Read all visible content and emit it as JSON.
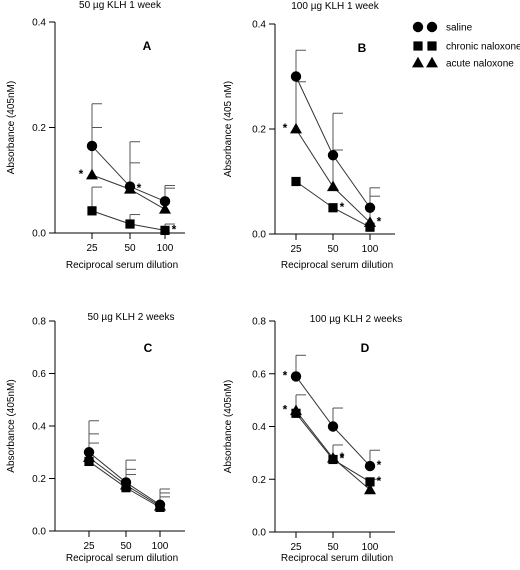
{
  "legend": {
    "placement": "top-right",
    "entries": [
      {
        "label": "saline",
        "marker": "circle"
      },
      {
        "label": "chronic naloxone",
        "marker": "square"
      },
      {
        "label": "acute naloxone",
        "marker": "triangle"
      }
    ]
  },
  "chart_data": [
    {
      "type": "line",
      "panel": "A",
      "title": "50 µg KLH 1 week",
      "xlabel": "Reciprocal serum dilution",
      "ylabel": "Absorbance (405nM)",
      "categories": [
        "25",
        "50",
        "100"
      ],
      "ylim": [
        0,
        0.4
      ],
      "yticks": [
        "0.0",
        "0.2",
        "0.4"
      ],
      "grid": false,
      "series": [
        {
          "name": "saline",
          "marker": "circle",
          "values": [
            0.165,
            0.088,
            0.06
          ],
          "error": [
            0.08,
            0.085,
            0.03
          ]
        },
        {
          "name": "acute naloxone",
          "marker": "triangle",
          "values": [
            0.11,
            0.083,
            0.045
          ],
          "error": [
            0.09,
            0.05,
            0.04
          ]
        },
        {
          "name": "chronic naloxone",
          "marker": "square",
          "values": [
            0.042,
            0.017,
            0.005
          ],
          "error": [
            0.045,
            0.018,
            0.012
          ]
        }
      ],
      "annotations": [
        {
          "text": "*",
          "series": "acute naloxone",
          "index": 0
        },
        {
          "text": "*",
          "series": "acute naloxone",
          "index": 1
        },
        {
          "text": "*",
          "series": "chronic naloxone",
          "index": 2
        }
      ]
    },
    {
      "type": "line",
      "panel": "B",
      "title": "100 µg KLH 1 week",
      "xlabel": "Reciprocal serum dilution",
      "ylabel": "Absorbance (405 nM)",
      "categories": [
        "25",
        "50",
        "100"
      ],
      "ylim": [
        0,
        0.4
      ],
      "yticks": [
        "0.0",
        "0.2",
        "0.4"
      ],
      "grid": false,
      "series": [
        {
          "name": "saline",
          "marker": "circle",
          "values": [
            0.3,
            0.15,
            0.05
          ],
          "error": [
            0.05,
            0.08,
            0.038
          ]
        },
        {
          "name": "acute naloxone",
          "marker": "triangle",
          "values": [
            0.2,
            0.09,
            0.022
          ],
          "error": [
            0.09,
            0.07,
            0.05
          ]
        },
        {
          "name": "chronic naloxone",
          "marker": "square",
          "values": [
            0.1,
            0.05,
            0.013
          ],
          "error": [
            0,
            0,
            0
          ]
        }
      ],
      "annotations": [
        {
          "text": "*",
          "series": "acute naloxone",
          "index": 0
        },
        {
          "text": "*",
          "series": "chronic naloxone",
          "index": 1
        },
        {
          "text": "*",
          "series": "acute naloxone",
          "index": 2
        }
      ]
    },
    {
      "type": "line",
      "panel": "C",
      "title": "50 µg KLH 2 weeks",
      "xlabel": "Reciprocal serum dilution",
      "ylabel": "Absorbance (405nM)",
      "categories": [
        "25",
        "50",
        "100"
      ],
      "ylim": [
        0,
        0.8
      ],
      "yticks": [
        "0.0",
        "0.2",
        "0.4",
        "0.6",
        "0.8"
      ],
      "grid": false,
      "series": [
        {
          "name": "saline",
          "marker": "circle",
          "values": [
            0.3,
            0.185,
            0.1
          ],
          "error": [
            0.12,
            0.085,
            0.06
          ]
        },
        {
          "name": "acute naloxone",
          "marker": "triangle",
          "values": [
            0.28,
            0.175,
            0.095
          ],
          "error": [
            0.09,
            0.06,
            0.05
          ]
        },
        {
          "name": "chronic naloxone",
          "marker": "square",
          "values": [
            0.265,
            0.165,
            0.09
          ],
          "error": [
            0.07,
            0.05,
            0.04
          ]
        }
      ],
      "annotations": []
    },
    {
      "type": "line",
      "panel": "D",
      "title": "100 µg KLH 2 weeks",
      "xlabel": "Reciprocal serum dilution",
      "ylabel": "Absorbance (405nM)",
      "categories": [
        "25",
        "50",
        "100"
      ],
      "ylim": [
        0,
        0.8
      ],
      "yticks": [
        "0.0",
        "0.2",
        "0.4",
        "0.6",
        "0.8"
      ],
      "grid": false,
      "series": [
        {
          "name": "saline",
          "marker": "circle",
          "values": [
            0.59,
            0.4,
            0.25
          ],
          "error": [
            0.08,
            0.07,
            0.06
          ]
        },
        {
          "name": "acute naloxone",
          "marker": "triangle",
          "values": [
            0.46,
            0.28,
            0.16
          ],
          "error": [
            0.06,
            0.05,
            0.04
          ]
        },
        {
          "name": "chronic naloxone",
          "marker": "square",
          "values": [
            0.45,
            0.275,
            0.19
          ],
          "error": [
            0,
            0,
            0
          ]
        }
      ],
      "annotations": [
        {
          "text": "*",
          "series": "saline",
          "index": 0
        },
        {
          "text": "*",
          "series": "acute naloxone",
          "index": 0
        },
        {
          "text": "*",
          "series": "acute naloxone",
          "index": 1
        },
        {
          "text": "*",
          "series": "chronic naloxone",
          "index": 1
        },
        {
          "text": "*",
          "series": "saline",
          "index": 2
        },
        {
          "text": "*",
          "series": "chronic naloxone",
          "index": 2
        }
      ]
    }
  ]
}
